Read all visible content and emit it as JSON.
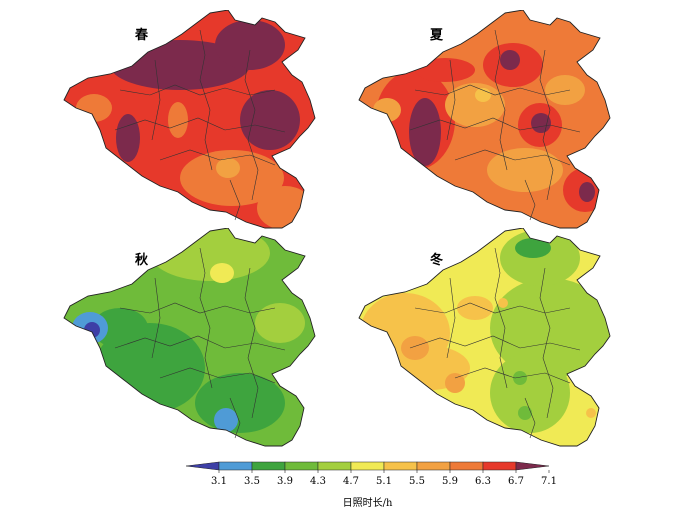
{
  "panels": [
    {
      "id": "spring",
      "label": "春"
    },
    {
      "id": "summer",
      "label": "夏"
    },
    {
      "id": "autumn",
      "label": "秋"
    },
    {
      "id": "winter",
      "label": "冬"
    }
  ],
  "legend": {
    "title": "日照时长/h",
    "ticks": [
      "3.1",
      "3.5",
      "3.9",
      "4.3",
      "4.7",
      "5.1",
      "5.5",
      "5.9",
      "6.3",
      "6.7",
      "7.1"
    ],
    "colors": [
      "#3d3fa6",
      "#4f9bd6",
      "#3ea43e",
      "#6fbb3a",
      "#a3cf3e",
      "#f0ea55",
      "#f6c24a",
      "#f2a142",
      "#ee7a38",
      "#e6392b",
      "#7c2a4c"
    ]
  }
}
